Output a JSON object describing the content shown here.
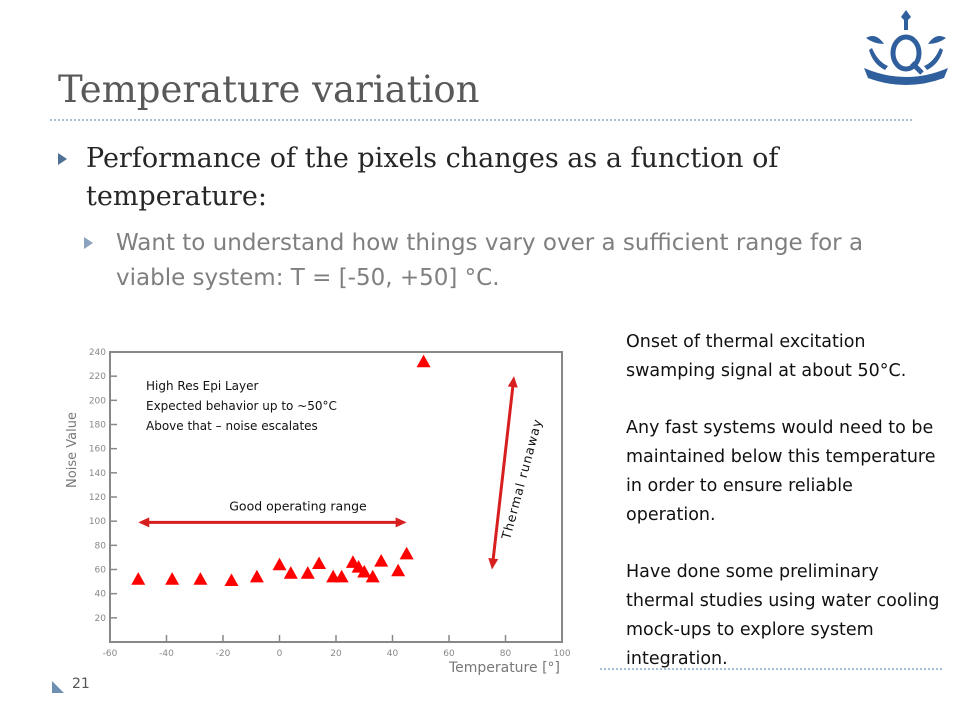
{
  "slide": {
    "title": "Temperature variation",
    "bullet1": "Performance of the pixels changes as a function of temperature:",
    "bullet2": "Want to understand how things vary over a sufficient range for a viable system: T = [-50, +50] °C.",
    "side_text": [
      "Onset of thermal excitation swamping signal at about 50°C.",
      "Any fast systems would need to be maintained below this temperature in order to ensure reliable operation.",
      "Have done some preliminary thermal studies using water cooling mock-ups to explore system integration."
    ],
    "page_number": "21",
    "logo_icon": "crown-q-logo-icon"
  },
  "chart_data": {
    "type": "scatter",
    "xlabel": "Temperature [°]",
    "ylabel": "Noise Value",
    "xlim": [
      -60,
      100
    ],
    "ylim": [
      0,
      240
    ],
    "xticks": [
      -60,
      -40,
      -20,
      0,
      20,
      40,
      60,
      80,
      100
    ],
    "yticks": [
      20,
      40,
      60,
      80,
      100,
      120,
      140,
      160,
      180,
      200,
      220,
      240
    ],
    "marker_color": "#ff0000",
    "points": [
      {
        "x": -50,
        "y": 52
      },
      {
        "x": -38,
        "y": 52
      },
      {
        "x": -28,
        "y": 52
      },
      {
        "x": -17,
        "y": 51
      },
      {
        "x": -8,
        "y": 54
      },
      {
        "x": 0,
        "y": 64
      },
      {
        "x": 4,
        "y": 57
      },
      {
        "x": 10,
        "y": 57
      },
      {
        "x": 14,
        "y": 65
      },
      {
        "x": 19,
        "y": 54
      },
      {
        "x": 22,
        "y": 54
      },
      {
        "x": 26,
        "y": 66
      },
      {
        "x": 28,
        "y": 62
      },
      {
        "x": 30,
        "y": 58
      },
      {
        "x": 33,
        "y": 54
      },
      {
        "x": 36,
        "y": 67
      },
      {
        "x": 42,
        "y": 59
      },
      {
        "x": 45,
        "y": 73
      },
      {
        "x": 51,
        "y": 232
      }
    ],
    "annotations": {
      "legend_lines": [
        "High Res Epi Layer",
        "Expected behavior up to ~50°C",
        "Above that – noise escalates"
      ],
      "good_range_label": "Good operating range",
      "good_range_x": [
        -50,
        45
      ],
      "good_range_y": 99,
      "runaway_label": "Thermal runaway",
      "runaway_y": [
        60,
        220
      ]
    },
    "arrow_color": "#d81f1f"
  }
}
